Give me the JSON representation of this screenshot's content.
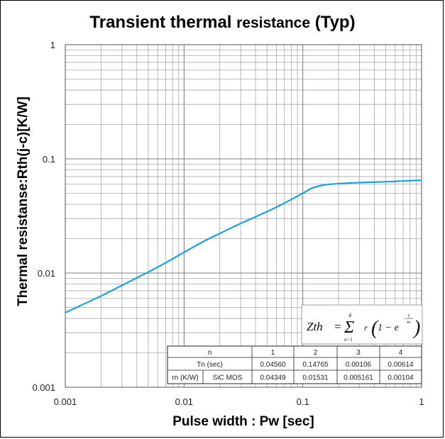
{
  "chart_data": {
    "type": "line",
    "title_parts": [
      "Transient thermal ",
      "resistance",
      " (Typ)"
    ],
    "xlabel": "Pulse width : Pw [sec]",
    "ylabel": "Thermal resistanse:Rth(j-c)[K/W]",
    "xscale": "log",
    "yscale": "log",
    "xlim": [
      0.001,
      1
    ],
    "ylim": [
      0.001,
      1
    ],
    "grid": true,
    "x_ticks": [
      "0.001",
      "0.01",
      "0.1",
      "1"
    ],
    "y_ticks": [
      "0.001",
      "0.01",
      "0.1",
      "1"
    ],
    "series": [
      {
        "color": "#1ba1e2",
        "x": [
          0.001,
          0.002,
          0.003,
          0.005,
          0.007,
          0.01,
          0.015,
          0.02,
          0.03,
          0.05,
          0.07,
          0.1,
          0.12,
          0.15,
          0.2,
          0.3,
          0.5,
          0.7,
          1.0
        ],
        "y": [
          0.0045,
          0.0063,
          0.0078,
          0.0102,
          0.0123,
          0.0152,
          0.0192,
          0.0222,
          0.0272,
          0.0345,
          0.041,
          0.05,
          0.0555,
          0.059,
          0.0607,
          0.062,
          0.063,
          0.064,
          0.065
        ]
      }
    ],
    "formula": {
      "lhs": "Zth",
      "equals": "=",
      "sum_upper": "4",
      "sum_lower": "n=1",
      "sigma": "Σ",
      "term": "r",
      "bracket_text": "1 − e",
      "exponent_num": "t",
      "exponent_den": "τn",
      "exponent_sign": "−"
    },
    "table": {
      "header_label": "n",
      "columns": [
        "1",
        "2",
        "3",
        "4"
      ],
      "tau_label": "Tn (sec)",
      "tau_values": [
        "0.04560",
        "0.14765",
        "0.00106",
        "0.00614"
      ],
      "r_label": "rn (K/W)",
      "r_sublabel": "SiC MOS",
      "r_values": [
        "0.04349",
        "0.01531",
        "0.005161",
        "0.00104"
      ]
    }
  }
}
